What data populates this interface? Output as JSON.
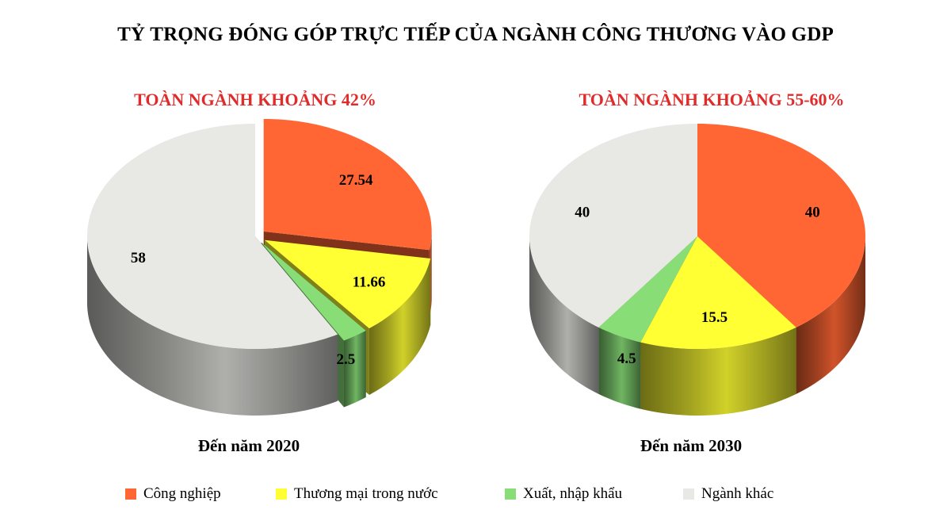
{
  "title": "TỶ TRỌNG ĐÓNG GÓP TRỰC TIẾP CỦA NGÀNH CÔNG THƯƠNG VÀO GDP",
  "colors": {
    "cong_nghiep": "#ff6633",
    "thuong_mai": "#ffff33",
    "xuat_nhap_khau": "#88dd77",
    "nganh_khac": "#e8e8e4",
    "headline": "#e02b2b"
  },
  "legend": [
    {
      "label": "Công nghiệp",
      "color": "#ff6633"
    },
    {
      "label": "Thương mại trong nước",
      "color": "#ffff33"
    },
    {
      "label": "Xuất, nhập khẩu",
      "color": "#88dd77"
    },
    {
      "label": "Ngành khác",
      "color": "#e8e8e4"
    }
  ],
  "chart_data": [
    {
      "type": "pie",
      "headline": "TOÀN NGÀNH KHOẢNG 42%",
      "caption": "Đến năm 2020",
      "slices": [
        {
          "name": "Công nghiệp",
          "value": 27.54,
          "label": "27.54"
        },
        {
          "name": "Thương mại trong nước",
          "value": 11.66,
          "label": "11.66"
        },
        {
          "name": "Xuất, nhập khẩu",
          "value": 2.5,
          "label": "2.5"
        },
        {
          "name": "Ngành khác",
          "value": 58,
          "label": "58"
        }
      ],
      "exploded": [
        "Công nghiệp",
        "Thương mại trong nước",
        "Xuất, nhập khẩu"
      ]
    },
    {
      "type": "pie",
      "headline": "TOÀN NGÀNH KHOẢNG 55-60%",
      "caption": "Đến năm 2030",
      "slices": [
        {
          "name": "Công nghiệp",
          "value": 40,
          "label": "40"
        },
        {
          "name": "Thương mại trong nước",
          "value": 15.5,
          "label": "15.5"
        },
        {
          "name": "Xuất, nhập khẩu",
          "value": 4.5,
          "label": "4.5"
        },
        {
          "name": "Ngành khác",
          "value": 40,
          "label": "40"
        }
      ],
      "exploded": []
    }
  ]
}
